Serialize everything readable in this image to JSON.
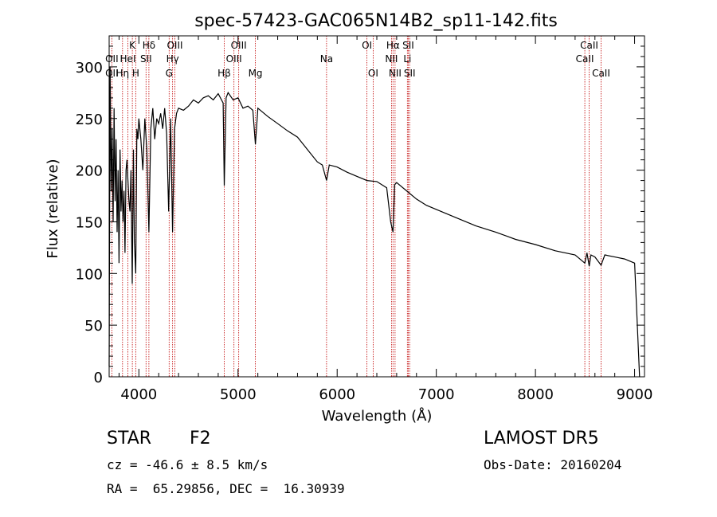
{
  "chart_data": {
    "type": "line",
    "title": "spec-57423-GAC065N14B2_sp11-142.fits",
    "xlabel": "Wavelength (Å)",
    "ylabel": "Flux (relative)",
    "xlim": [
      3700,
      9100
    ],
    "ylim": [
      0,
      330
    ],
    "xticks": [
      4000,
      5000,
      6000,
      7000,
      8000,
      9000
    ],
    "yticks": [
      0,
      50,
      100,
      150,
      200,
      250,
      300
    ],
    "grid": false,
    "series": [
      {
        "x": [
          3700,
          3710,
          3720,
          3730,
          3740,
          3750,
          3760,
          3770,
          3780,
          3790,
          3800,
          3810,
          3820,
          3830,
          3840,
          3850,
          3860,
          3870,
          3880,
          3890,
          3900,
          3910,
          3920,
          3933,
          3945,
          3955,
          3968,
          3980,
          3990,
          4000,
          4020,
          4040,
          4060,
          4080,
          4101,
          4120,
          4140,
          4160,
          4180,
          4200,
          4220,
          4240,
          4260,
          4280,
          4300,
          4320,
          4340,
          4360,
          4380,
          4400,
          4450,
          4500,
          4550,
          4600,
          4650,
          4700,
          4750,
          4800,
          4850,
          4861,
          4880,
          4900,
          4950,
          5000,
          5050,
          5100,
          5150,
          5175,
          5200,
          5300,
          5400,
          5500,
          5600,
          5700,
          5800,
          5850,
          5893,
          5920,
          6000,
          6100,
          6200,
          6300,
          6400,
          6500,
          6540,
          6563,
          6580,
          6600,
          6700,
          6800,
          6900,
          7000,
          7200,
          7400,
          7600,
          7800,
          8000,
          8200,
          8400,
          8498,
          8520,
          8542,
          8560,
          8600,
          8662,
          8700,
          8800,
          8900,
          9000,
          9050
        ],
        "y": [
          10,
          300,
          180,
          240,
          150,
          260,
          170,
          230,
          140,
          200,
          110,
          220,
          160,
          190,
          150,
          180,
          120,
          200,
          210,
          190,
          170,
          160,
          200,
          90,
          220,
          130,
          100,
          240,
          230,
          250,
          230,
          200,
          250,
          220,
          140,
          240,
          260,
          230,
          250,
          245,
          255,
          240,
          260,
          235,
          160,
          250,
          140,
          240,
          255,
          260,
          258,
          262,
          268,
          265,
          270,
          272,
          268,
          274,
          265,
          185,
          270,
          275,
          268,
          270,
          260,
          262,
          258,
          225,
          260,
          252,
          245,
          238,
          232,
          220,
          208,
          205,
          190,
          205,
          203,
          198,
          194,
          190,
          189,
          183,
          150,
          140,
          186,
          188,
          180,
          172,
          166,
          162,
          154,
          146,
          140,
          133,
          128,
          122,
          118,
          110,
          120,
          107,
          118,
          116,
          108,
          118,
          116,
          114,
          110,
          0
        ]
      }
    ],
    "line_markers": [
      {
        "label": "Hδ",
        "x": 4102,
        "row": 1,
        "dx": -4
      },
      {
        "label": "K",
        "x": 3934,
        "row": 1,
        "dx": 0
      },
      {
        "label": "Hδ",
        "x": 4101,
        "row": 1,
        "dx": 0
      },
      {
        "label": "OIII",
        "x": 4363,
        "row": 1,
        "dx": 0
      },
      {
        "label": "OIII",
        "x": 5007,
        "row": 1,
        "dx": 0
      },
      {
        "label": "OI",
        "x": 6300,
        "row": 1,
        "dx": 0
      },
      {
        "label": "Hα",
        "x": 6563,
        "row": 1,
        "dx": 0
      },
      {
        "label": "SII",
        "x": 6717,
        "row": 1,
        "dx": 0
      },
      {
        "label": "CaII",
        "x": 8542,
        "row": 1,
        "dx": 0
      },
      {
        "label": "OII",
        "x": 3727,
        "row": 2,
        "dx": 0
      },
      {
        "label": "HeI",
        "x": 3889,
        "row": 2,
        "dx": 0
      },
      {
        "label": "SII",
        "x": 4072,
        "row": 2,
        "dx": 0
      },
      {
        "label": "Hγ",
        "x": 4340,
        "row": 2,
        "dx": 0
      },
      {
        "label": "OIII",
        "x": 4959,
        "row": 2,
        "dx": 0
      },
      {
        "label": "Na",
        "x": 5893,
        "row": 2,
        "dx": 0
      },
      {
        "label": "NII",
        "x": 6548,
        "row": 2,
        "dx": 0
      },
      {
        "label": "Li",
        "x": 6708,
        "row": 2,
        "dx": 0
      },
      {
        "label": "CaII",
        "x": 8498,
        "row": 2,
        "dx": 0
      },
      {
        "label": "OII",
        "x": 3727,
        "row": 3,
        "dx": 0
      },
      {
        "label": "Hη",
        "x": 3835,
        "row": 3,
        "dx": 0
      },
      {
        "label": "H",
        "x": 3968,
        "row": 3,
        "dx": 0
      },
      {
        "label": "G",
        "x": 4305,
        "row": 3,
        "dx": 0
      },
      {
        "label": "Hβ",
        "x": 4861,
        "row": 3,
        "dx": 0
      },
      {
        "label": "Mg",
        "x": 5175,
        "row": 3,
        "dx": 0
      },
      {
        "label": "OI",
        "x": 6363,
        "row": 3,
        "dx": 0
      },
      {
        "label": "NII",
        "x": 6584,
        "row": 3,
        "dx": 0
      },
      {
        "label": "SII",
        "x": 6731,
        "row": 3,
        "dx": 0
      },
      {
        "label": "CaII",
        "x": 8662,
        "row": 3,
        "dx": 0
      }
    ],
    "line_positions": [
      3727,
      3835,
      3889,
      3934,
      3968,
      4072,
      4101,
      4305,
      4340,
      4363,
      4861,
      4959,
      5007,
      5175,
      5893,
      6300,
      6363,
      6548,
      6563,
      6584,
      6708,
      6717,
      6731,
      8498,
      8542,
      8662
    ],
    "marker_color": "#c00000"
  },
  "info": {
    "object_class": "STAR",
    "subclass": "F2",
    "survey": "LAMOST DR5",
    "cz": "cz = -46.6 ± 8.5 km/s",
    "obs_date": "Obs-Date: 20160204",
    "coords": "RA =  65.29856, DEC =  16.30939"
  }
}
